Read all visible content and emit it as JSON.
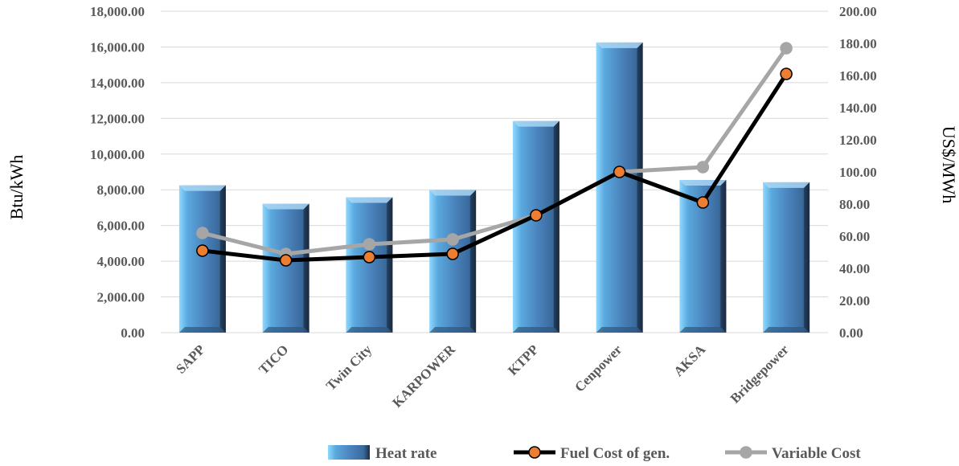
{
  "chart_data": {
    "type": "bar",
    "categories": [
      "SAPP",
      "TICO",
      "Twin City",
      "KARPOWER",
      "KTPP",
      "Cenpower",
      "AKSA",
      "Bridgepower"
    ],
    "series": [
      {
        "name": "Heat rate",
        "type": "bar",
        "axis": "left",
        "values": [
          8250,
          7220,
          7580,
          7990,
          11850,
          16250,
          8550,
          8420
        ],
        "color": "#4f81bd"
      },
      {
        "name": "Fuel Cost of gen.",
        "type": "line",
        "axis": "right",
        "values": [
          51,
          45,
          47,
          49,
          73,
          100,
          81,
          161
        ],
        "color": "#000000",
        "marker_color": "#ed7d31"
      },
      {
        "name": "Variable Cost",
        "type": "line",
        "axis": "right",
        "values": [
          62,
          49,
          55,
          58,
          73,
          100,
          103,
          177
        ],
        "color": "#a6a6a6",
        "marker_color": "#a6a6a6"
      }
    ],
    "ylabel": "Btu/kWh",
    "y2label": "US$/MWh",
    "ylim": [
      0,
      18000
    ],
    "y2lim": [
      0,
      200
    ],
    "y_ticks": [
      "0.00",
      "2,000.00",
      "4,000.00",
      "6,000.00",
      "8,000.00",
      "10,000.00",
      "12,000.00",
      "14,000.00",
      "16,000.00",
      "18,000.00"
    ],
    "y2_ticks": [
      "0.00",
      "20.00",
      "40.00",
      "60.00",
      "80.00",
      "100.00",
      "120.00",
      "140.00",
      "160.00",
      "180.00",
      "200.00"
    ],
    "grid": true,
    "legend": "bottom-right"
  }
}
